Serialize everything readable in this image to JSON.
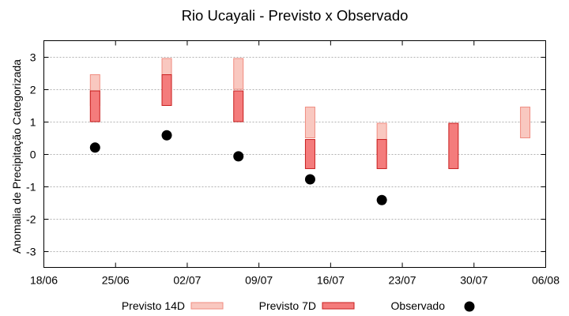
{
  "chart_data": {
    "type": "range-bar",
    "title": "Rio Ucayali - Previsto x Observado",
    "xlabel": "",
    "ylabel": "Anomalia de Precipitação Categorizada",
    "x_axis": {
      "type": "date",
      "range": [
        "2023-06-18",
        "2023-08-06"
      ],
      "ticks": [
        "18/06",
        "25/06",
        "02/07",
        "09/07",
        "16/07",
        "23/07",
        "30/07",
        "06/08"
      ]
    },
    "y_axis": {
      "range": [
        -3.5,
        3.5
      ],
      "ticks": [
        "3",
        "2",
        "1",
        "0",
        "-1",
        "-2",
        "-3"
      ],
      "grid": true
    },
    "legend_position": "bottom",
    "series": [
      {
        "name": "Previsto 14D",
        "kind": "range",
        "color": "#f9c8c0",
        "stroke": "#f08c80",
        "points": [
          {
            "date": "2023-06-23",
            "low": 1.5,
            "high": 2.45
          },
          {
            "date": "2023-06-30",
            "low": 1.5,
            "high": 2.95
          },
          {
            "date": "2023-07-07",
            "low": 2.0,
            "high": 2.95
          },
          {
            "date": "2023-07-14",
            "low": 0.5,
            "high": 1.45
          },
          {
            "date": "2023-07-21",
            "low": 0.0,
            "high": 0.95
          },
          {
            "date": "2023-08-04",
            "low": 0.5,
            "high": 1.45
          }
        ]
      },
      {
        "name": "Previsto 7D",
        "kind": "range",
        "color": "#f47c7c",
        "stroke": "#c81e1e",
        "points": [
          {
            "date": "2023-06-23",
            "low": 1.0,
            "high": 1.95
          },
          {
            "date": "2023-06-30",
            "low": 1.5,
            "high": 2.45
          },
          {
            "date": "2023-07-07",
            "low": 1.0,
            "high": 1.95
          },
          {
            "date": "2023-07-14",
            "low": -0.45,
            "high": 0.45
          },
          {
            "date": "2023-07-21",
            "low": -0.45,
            "high": 0.45
          },
          {
            "date": "2023-07-28",
            "low": -0.45,
            "high": 0.95
          }
        ]
      },
      {
        "name": "Observado",
        "kind": "point",
        "color": "#000000",
        "points": [
          {
            "date": "2023-06-23",
            "value": 0.2
          },
          {
            "date": "2023-06-30",
            "value": 0.58
          },
          {
            "date": "2023-07-07",
            "value": -0.07
          },
          {
            "date": "2023-07-14",
            "value": -0.78
          },
          {
            "date": "2023-07-21",
            "value": -1.42
          }
        ]
      }
    ]
  }
}
